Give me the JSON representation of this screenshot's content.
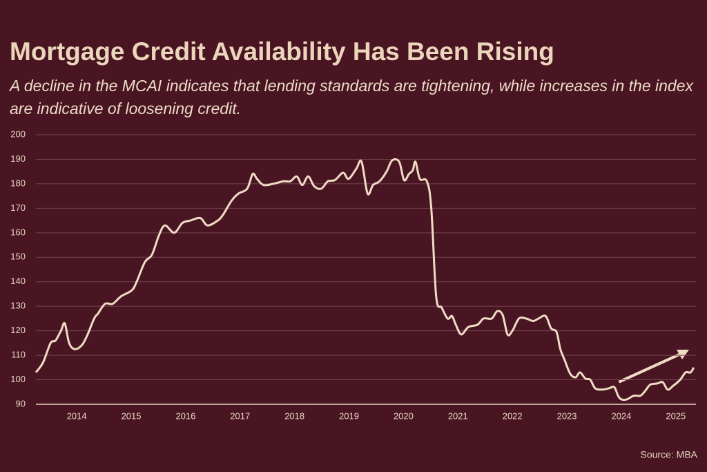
{
  "chart_data": {
    "type": "line",
    "title": "Mortgage Credit Availability Has Been Rising",
    "subtitle": "A decline in the MCAI indicates that lending standards are tightening, while increases in the index are indicative of loosening credit.",
    "source": "Source: MBA",
    "grid": true,
    "xlim": [
      2013.25,
      2025.37
    ],
    "xticks": [
      2014,
      2015,
      2016,
      2017,
      2018,
      2019,
      2020,
      2021,
      2022,
      2023,
      2024,
      2025
    ],
    "ylim": [
      90,
      200
    ],
    "yticks": [
      90,
      100,
      110,
      120,
      130,
      140,
      150,
      160,
      170,
      180,
      190,
      200
    ],
    "series": [
      {
        "color": "#f0dcc4",
        "x": [
          2013.25,
          2013.38,
          2013.52,
          2013.61,
          2013.71,
          2013.78,
          2013.86,
          2013.96,
          2014.09,
          2014.19,
          2014.32,
          2014.39,
          2014.52,
          2014.66,
          2014.81,
          2015.01,
          2015.1,
          2015.25,
          2015.38,
          2015.51,
          2015.62,
          2015.79,
          2015.94,
          2016.09,
          2016.27,
          2016.4,
          2016.59,
          2016.69,
          2016.84,
          2016.97,
          2017.13,
          2017.23,
          2017.31,
          2017.43,
          2017.61,
          2017.79,
          2017.92,
          2018.04,
          2018.14,
          2018.25,
          2018.36,
          2018.49,
          2018.61,
          2018.74,
          2018.89,
          2018.99,
          2019.13,
          2019.23,
          2019.34,
          2019.44,
          2019.56,
          2019.69,
          2019.79,
          2019.92,
          2020.01,
          2020.1,
          2020.17,
          2020.22,
          2020.3,
          2020.43,
          2020.51,
          2020.6,
          2020.7,
          2020.81,
          2020.89,
          2020.96,
          2021.06,
          2021.19,
          2021.36,
          2021.47,
          2021.62,
          2021.72,
          2021.82,
          2021.91,
          2022.0,
          2022.12,
          2022.25,
          2022.38,
          2022.48,
          2022.61,
          2022.71,
          2022.81,
          2022.88,
          2022.96,
          2023.06,
          2023.16,
          2023.24,
          2023.34,
          2023.43,
          2023.52,
          2023.65,
          2023.77,
          2023.87,
          2023.94,
          2024.0,
          2024.1,
          2024.23,
          2024.35,
          2024.44,
          2024.53,
          2024.66,
          2024.76,
          2024.85,
          2024.95,
          2025.08,
          2025.18,
          2025.27,
          2025.33
        ],
        "values": [
          103,
          107,
          115,
          116,
          120,
          123,
          115,
          112.5,
          114,
          118,
          125,
          127,
          131,
          131,
          134,
          136.5,
          140,
          148,
          151,
          159,
          163,
          160,
          164,
          165,
          166,
          163,
          165,
          167.5,
          173,
          176,
          178,
          184,
          182,
          179.5,
          180,
          181,
          181,
          183,
          179.5,
          183,
          179,
          178,
          181,
          181.5,
          184.5,
          182,
          186,
          189,
          176,
          179.5,
          181,
          185,
          189.5,
          189,
          181.5,
          184,
          185.5,
          189,
          182,
          181,
          170,
          134,
          129.5,
          125,
          126,
          122.5,
          118.5,
          121.5,
          122.5,
          125,
          125,
          128,
          126.5,
          118.5,
          120,
          125,
          125,
          124,
          125,
          126,
          121,
          119.5,
          112.5,
          108,
          102.5,
          101,
          103,
          100.5,
          100,
          96.5,
          96,
          96.5,
          97,
          93.5,
          92,
          92,
          93.5,
          93.5,
          95.5,
          98,
          98.5,
          99,
          96,
          97.5,
          100,
          103,
          103,
          105
        ]
      }
    ]
  }
}
